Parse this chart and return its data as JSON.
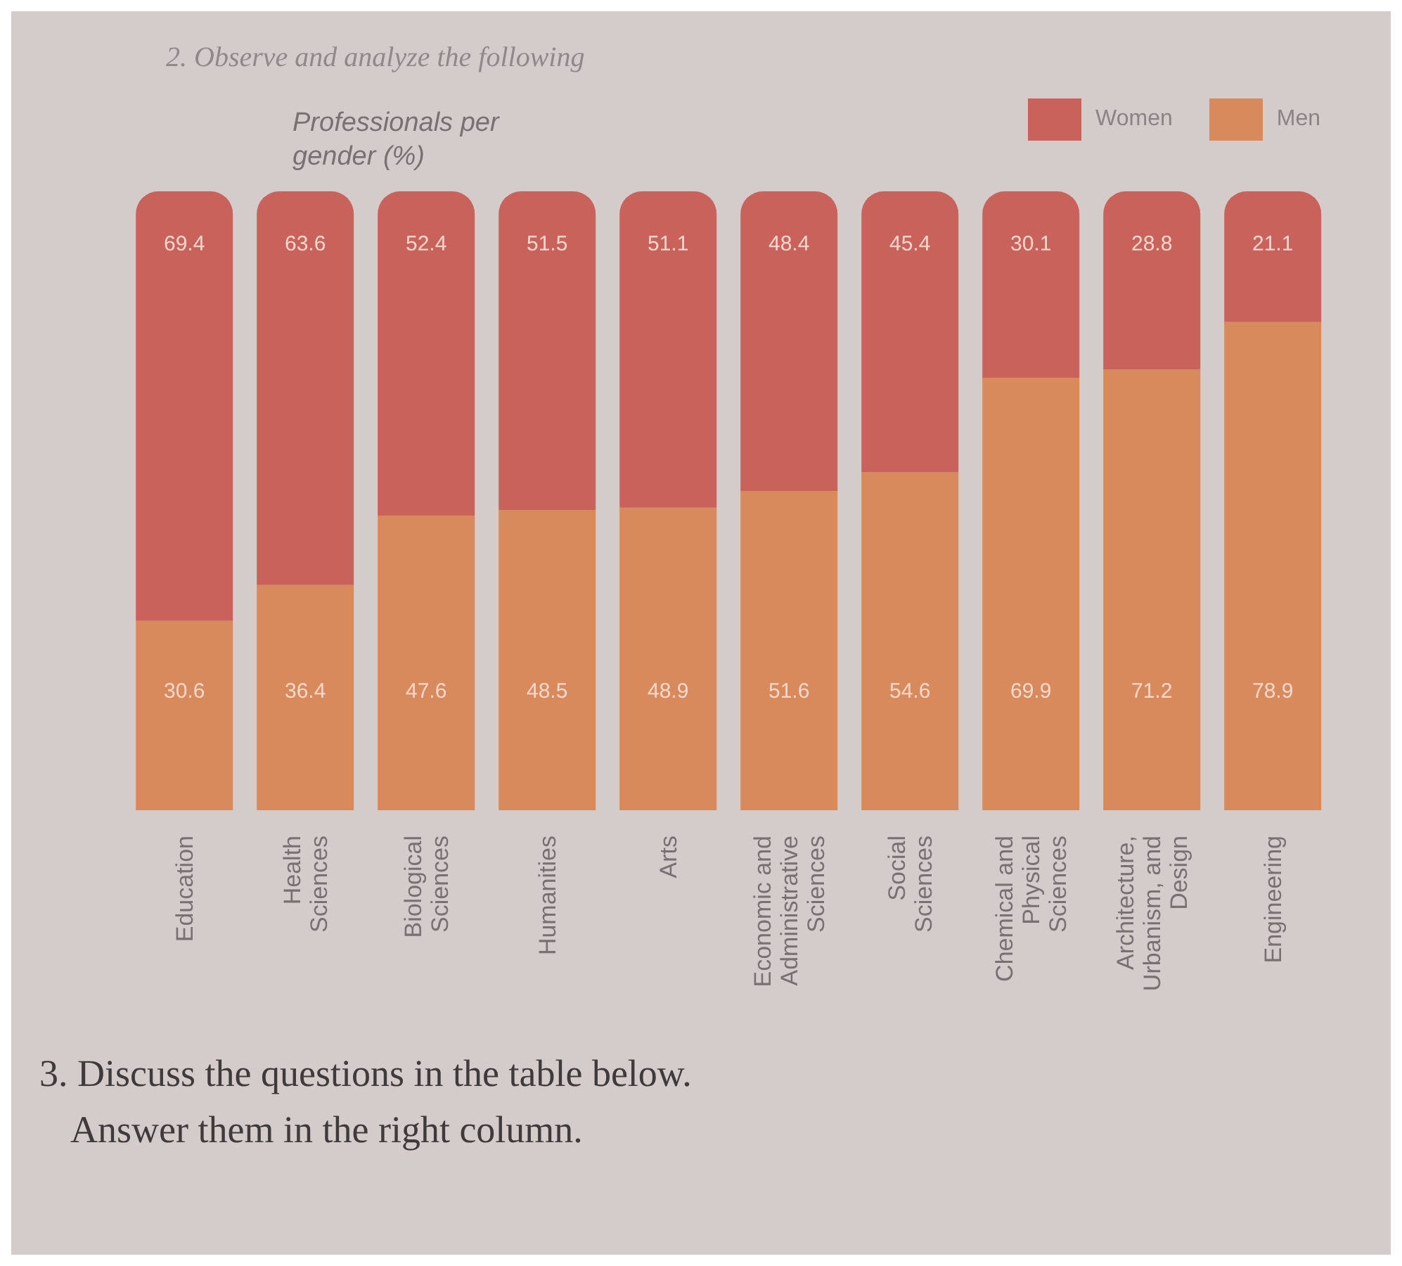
{
  "chart_data": {
    "type": "bar",
    "title": "Professionals per gender (%)",
    "categories": [
      "Education",
      "Health Sciences",
      "Biological Sciences",
      "Humanities",
      "Arts",
      "Economic and Administrative Sciences",
      "Social Sciences",
      "Chemical and Physical Sciences",
      "Architecture, Urbanism, and Design",
      "Engineering"
    ],
    "series": [
      {
        "name": "Men",
        "color": "#d98a5c",
        "values": [
          30.6,
          36.4,
          47.6,
          48.5,
          48.9,
          51.6,
          54.6,
          69.9,
          71.2,
          78.9
        ]
      },
      {
        "name": "Women",
        "color": "#c9625a",
        "values": [
          69.4,
          63.6,
          52.4,
          51.5,
          51.1,
          48.4,
          45.4,
          30.1,
          28.8,
          21.1
        ]
      }
    ],
    "stacked": true,
    "data_labels": true,
    "legend": "top right",
    "annotations": [
      "2. Observe and analyze the following",
      "3. Discuss the questions in the table below.",
      "Answer them in the right column."
    ]
  }
}
